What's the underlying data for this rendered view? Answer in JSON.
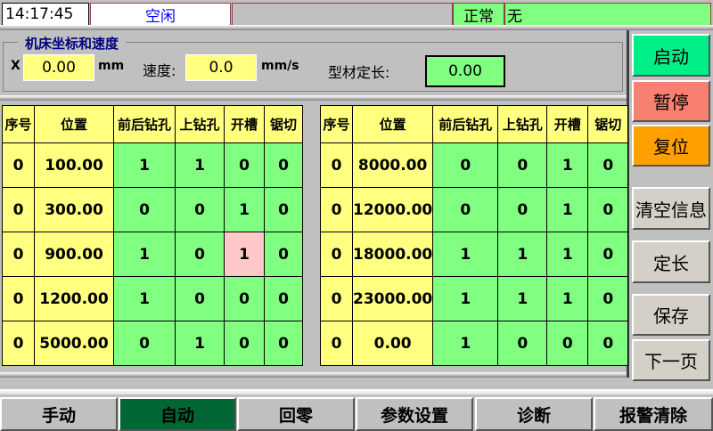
{
  "status": {
    "time": "14:17:45",
    "state": "空闲",
    "message": "",
    "health": "正常",
    "alarm": "无"
  },
  "coords": {
    "group_title": "机床坐标和速度",
    "x_label": "X",
    "x_value": "0.00",
    "x_unit": "mm",
    "speed_label": "速度:",
    "speed_value": "0.0",
    "speed_unit": "mm/s",
    "length_label": "型材定长:",
    "length_value": "0.00"
  },
  "table_headers": [
    "序号",
    "位置",
    "前后钻孔",
    "上钻孔",
    "开槽",
    "锯切"
  ],
  "left_rows": [
    [
      "0",
      "100.00",
      "1",
      "1",
      "0",
      "0"
    ],
    [
      "0",
      "300.00",
      "0",
      "0",
      "1",
      "0"
    ],
    [
      "0",
      "900.00",
      "1",
      "0",
      "1",
      "0"
    ],
    [
      "0",
      "1200.00",
      "1",
      "0",
      "0",
      "0"
    ],
    [
      "0",
      "5000.00",
      "0",
      "1",
      "0",
      "0"
    ]
  ],
  "right_rows": [
    [
      "0",
      "8000.00",
      "0",
      "0",
      "1",
      "0"
    ],
    [
      "0",
      "12000.00",
      "0",
      "0",
      "1",
      "0"
    ],
    [
      "0",
      "18000.00",
      "1",
      "1",
      "1",
      "0"
    ],
    [
      "0",
      "23000.00",
      "1",
      "1",
      "1",
      "0"
    ],
    [
      "0",
      "0.00",
      "1",
      "0",
      "0",
      "0"
    ]
  ],
  "side_buttons": {
    "start": "启动",
    "pause": "暂停",
    "reset": "复位",
    "clear": "清空信息",
    "fixlen": "定长",
    "save": "保存",
    "next": "下一页"
  },
  "nav": [
    "手动",
    "自动",
    "回零",
    "参数设置",
    "诊断",
    "报警清除"
  ],
  "colors": {
    "yellow": "#ffff80",
    "green": "#80ff80",
    "highlight": "#ffc8c8",
    "start": "#00ee88",
    "pause": "#f88070",
    "reset": "#ffa000",
    "active_nav": "#006633"
  }
}
